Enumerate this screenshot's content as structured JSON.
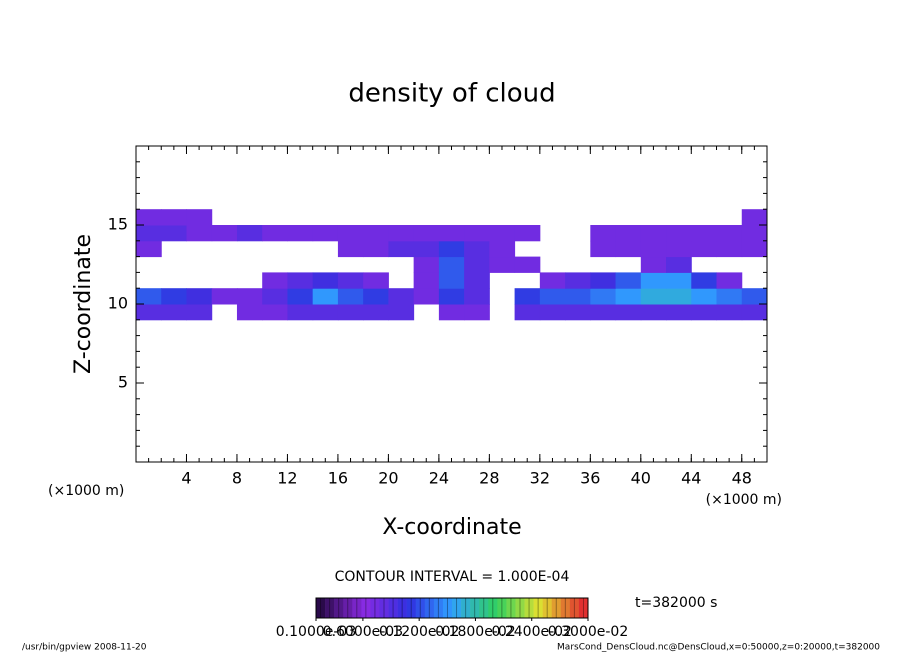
{
  "chart_data": {
    "type": "heatmap",
    "title": "density of cloud",
    "xlabel": "X-coordinate",
    "ylabel": "Z-coordinate",
    "xunit": "(×1000 m)",
    "yunit": "(×1000 m)",
    "xlim": [
      0,
      50
    ],
    "ylim": [
      0,
      20
    ],
    "xticks": [
      4,
      8,
      12,
      16,
      20,
      24,
      28,
      32,
      36,
      40,
      44,
      48
    ],
    "yticks": [
      5,
      10,
      15
    ],
    "x": [
      1,
      3,
      5,
      7,
      9,
      11,
      13,
      15,
      17,
      19,
      21,
      23,
      25,
      27,
      29,
      31,
      33,
      35,
      37,
      39,
      41,
      43,
      45,
      47,
      49
    ],
    "z": [
      9.5,
      10.5,
      11.5,
      12.5,
      13.5,
      14.5,
      15.5
    ],
    "values": [
      [
        0.0003,
        0.0003,
        0.0003,
        null,
        0.0002,
        0.0002,
        0.0003,
        0.0003,
        0.0003,
        0.0003,
        0.0003,
        null,
        0.0002,
        0.0002,
        null,
        0.0003,
        0.0003,
        0.0003,
        0.0003,
        0.0003,
        0.0003,
        0.0003,
        0.0003,
        0.0003,
        0.0003
      ],
      [
        0.0006,
        0.0005,
        0.0004,
        0.0002,
        0.0002,
        0.0003,
        0.0005,
        0.0008,
        0.0006,
        0.0005,
        0.0003,
        0.0002,
        0.0005,
        0.0003,
        null,
        0.0005,
        0.0006,
        0.0006,
        0.0007,
        0.0008,
        0.0009,
        0.0009,
        0.0008,
        0.0007,
        0.0006
      ],
      [
        null,
        null,
        null,
        null,
        null,
        0.0002,
        0.0003,
        0.0004,
        0.0003,
        0.0002,
        null,
        0.0002,
        0.0006,
        0.0003,
        null,
        null,
        0.0002,
        0.0003,
        0.0004,
        0.0006,
        0.0008,
        0.0008,
        0.0005,
        0.0002,
        null
      ],
      [
        null,
        null,
        null,
        null,
        null,
        null,
        null,
        null,
        null,
        null,
        null,
        0.0002,
        0.0006,
        0.0003,
        0.0002,
        0.0002,
        null,
        null,
        null,
        null,
        0.0002,
        0.0003,
        null,
        null,
        null
      ],
      [
        0.0002,
        null,
        null,
        null,
        null,
        null,
        null,
        null,
        0.0002,
        0.0002,
        0.0003,
        0.0003,
        0.0005,
        0.0003,
        0.0002,
        null,
        null,
        null,
        0.0002,
        0.0002,
        0.0002,
        0.0002,
        0.0002,
        0.0002,
        0.0002
      ],
      [
        0.0003,
        0.0003,
        0.0002,
        0.0002,
        0.0003,
        0.0002,
        0.0002,
        0.0002,
        0.0002,
        0.0002,
        0.0002,
        0.0002,
        0.0002,
        0.0002,
        0.0002,
        0.0002,
        null,
        null,
        0.0002,
        0.0002,
        0.0002,
        0.0002,
        0.0002,
        0.0002,
        0.0002
      ],
      [
        0.0002,
        0.0002,
        0.0002,
        null,
        null,
        null,
        null,
        null,
        null,
        null,
        null,
        null,
        null,
        null,
        null,
        null,
        null,
        null,
        null,
        null,
        null,
        null,
        null,
        null,
        0.0002
      ]
    ],
    "colormap": [
      "#2a0a4a",
      "#8a2be2",
      "#3030e0",
      "#30a0ff",
      "#30d060",
      "#e0e030",
      "#e03030"
    ],
    "contour_interval": "CONTOUR INTERVAL = 1.000E-04",
    "colorbar_ticks": [
      {
        "value": 0.0001,
        "label": "0.1000e-03"
      },
      {
        "value": 0.0006,
        "label": "0.6000e-03"
      },
      {
        "value": 0.0012,
        "label": "0.1200e-02"
      },
      {
        "value": 0.0018,
        "label": "0.1800e-02"
      },
      {
        "value": 0.0024,
        "label": "0.2400e-02"
      },
      {
        "value": 0.003,
        "label": "0.3000e-02"
      }
    ],
    "time_label": "t=382000 s",
    "footer_left": "/usr/bin/gpview  2008-11-20",
    "footer_right": "MarsCond_DensCloud.nc@DensCloud,x=0:50000,z=0:20000,t=382000"
  }
}
